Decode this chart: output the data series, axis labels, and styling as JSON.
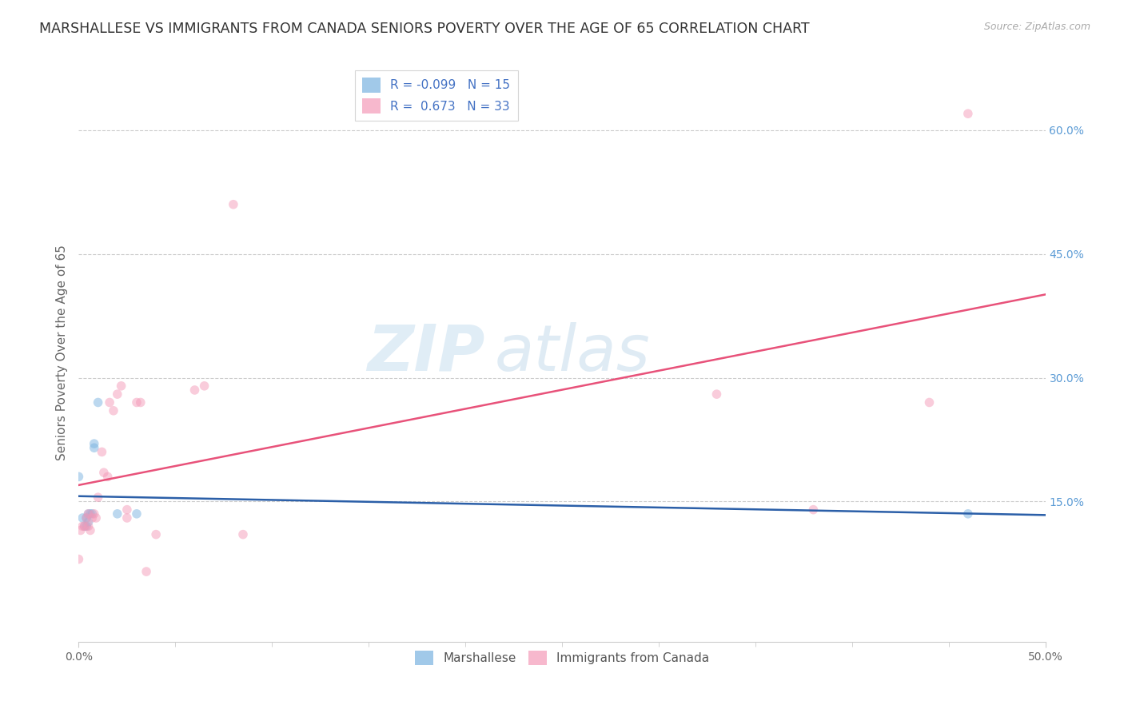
{
  "title": "MARSHALLESE VS IMMIGRANTS FROM CANADA SENIORS POVERTY OVER THE AGE OF 65 CORRELATION CHART",
  "source": "Source: ZipAtlas.com",
  "ylabel": "Seniors Poverty Over the Age of 65",
  "xlim": [
    0.0,
    0.5
  ],
  "ylim": [
    -0.02,
    0.68
  ],
  "xticks": [
    0.0,
    0.5
  ],
  "xticklabels": [
    "0.0%",
    "50.0%"
  ],
  "yticks_right": [
    0.15,
    0.3,
    0.45,
    0.6
  ],
  "yticklabels_right": [
    "15.0%",
    "30.0%",
    "45.0%",
    "60.0%"
  ],
  "watermark_zip": "ZIP",
  "watermark_atlas": "atlas",
  "legend_r1": "R = -0.099   N = 15",
  "legend_r2": "R =  0.673   N = 33",
  "marshallese_x": [
    0.0,
    0.002,
    0.003,
    0.004,
    0.004,
    0.005,
    0.005,
    0.006,
    0.007,
    0.008,
    0.008,
    0.01,
    0.02,
    0.03,
    0.46
  ],
  "marshallese_y": [
    0.18,
    0.13,
    0.12,
    0.13,
    0.12,
    0.135,
    0.125,
    0.135,
    0.135,
    0.22,
    0.215,
    0.27,
    0.135,
    0.135,
    0.135
  ],
  "canada_x": [
    0.0,
    0.001,
    0.002,
    0.003,
    0.004,
    0.005,
    0.005,
    0.006,
    0.007,
    0.008,
    0.009,
    0.01,
    0.012,
    0.013,
    0.015,
    0.016,
    0.018,
    0.02,
    0.022,
    0.025,
    0.025,
    0.03,
    0.032,
    0.035,
    0.04,
    0.06,
    0.065,
    0.08,
    0.085,
    0.33,
    0.38,
    0.44,
    0.46
  ],
  "canada_y": [
    0.08,
    0.115,
    0.12,
    0.12,
    0.13,
    0.135,
    0.12,
    0.115,
    0.13,
    0.135,
    0.13,
    0.155,
    0.21,
    0.185,
    0.18,
    0.27,
    0.26,
    0.28,
    0.29,
    0.14,
    0.13,
    0.27,
    0.27,
    0.065,
    0.11,
    0.285,
    0.29,
    0.51,
    0.11,
    0.28,
    0.14,
    0.27,
    0.62
  ],
  "marshallese_color": "#7ab3e0",
  "canada_color": "#f49ab8",
  "marshallese_line_color": "#2b5fa8",
  "canada_line_color": "#e8527a",
  "dot_size": 70,
  "dot_alpha": 0.5,
  "background_color": "#ffffff",
  "grid_color": "#cccccc",
  "title_fontsize": 12.5,
  "axis_label_fontsize": 11,
  "tick_fontsize": 10,
  "right_tick_color": "#5b9bd5"
}
